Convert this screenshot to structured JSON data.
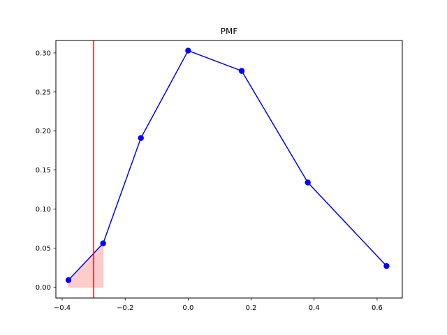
{
  "chart_data": {
    "type": "line",
    "title": "PMF",
    "xlabel": "",
    "ylabel": "",
    "xlim": [
      -0.42,
      0.68
    ],
    "ylim": [
      -0.014,
      0.316
    ],
    "x_ticks": [
      {
        "value": -0.4,
        "label": "−0.4"
      },
      {
        "value": -0.2,
        "label": "−0.2"
      },
      {
        "value": 0.0,
        "label": "0.0"
      },
      {
        "value": 0.2,
        "label": "0.2"
      },
      {
        "value": 0.4,
        "label": "0.4"
      },
      {
        "value": 0.6,
        "label": "0.6"
      }
    ],
    "y_ticks": [
      {
        "value": 0.0,
        "label": "0.00"
      },
      {
        "value": 0.05,
        "label": "0.05"
      },
      {
        "value": 0.1,
        "label": "0.10"
      },
      {
        "value": 0.15,
        "label": "0.15"
      },
      {
        "value": 0.2,
        "label": "0.20"
      },
      {
        "value": 0.25,
        "label": "0.25"
      },
      {
        "value": 0.3,
        "label": "0.30"
      }
    ],
    "grid": false,
    "series": [
      {
        "x": [
          -0.38,
          -0.27,
          -0.15,
          0.0,
          0.17,
          0.38,
          0.63
        ],
        "y": [
          0.009,
          0.056,
          0.191,
          0.303,
          0.277,
          0.134,
          0.027
        ],
        "color": "#0000ff",
        "marker": "circle"
      }
    ],
    "shaded_region": {
      "x": [
        -0.38,
        -0.27
      ],
      "y": [
        0.009,
        0.056
      ],
      "baseline": 0.0,
      "color": "#ff0000",
      "opacity": 0.2
    },
    "vline": {
      "x": -0.3,
      "color": "#ff0000"
    }
  }
}
